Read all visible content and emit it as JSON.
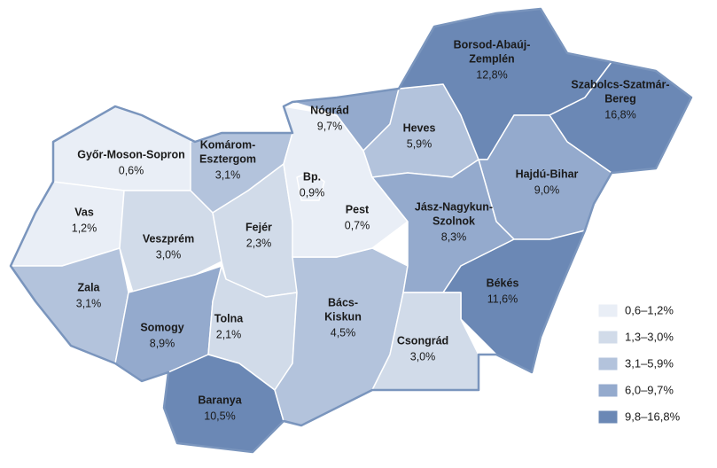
{
  "regions": [
    {
      "name": [
        "Győr-Moson-Sopron"
      ],
      "value": 0.6,
      "value_label": "0,6%"
    },
    {
      "name": [
        "Vas"
      ],
      "value": 1.2,
      "value_label": "1,2%"
    },
    {
      "name": [
        "Zala"
      ],
      "value": 3.1,
      "value_label": "3,1%"
    },
    {
      "name": [
        "Veszprém"
      ],
      "value": 3.0,
      "value_label": "3,0%"
    },
    {
      "name": [
        "Komárom-",
        "Esztergom"
      ],
      "value": 3.1,
      "value_label": "3,1%"
    },
    {
      "name": [
        "Fejér"
      ],
      "value": 2.3,
      "value_label": "2,3%"
    },
    {
      "name": [
        "Somogy"
      ],
      "value": 8.9,
      "value_label": "8,9%"
    },
    {
      "name": [
        "Tolna"
      ],
      "value": 2.1,
      "value_label": "2,1%"
    },
    {
      "name": [
        "Baranya"
      ],
      "value": 10.5,
      "value_label": "10,5%"
    },
    {
      "name": [
        "Bács-",
        "Kiskun"
      ],
      "value": 4.5,
      "value_label": "4,5%"
    },
    {
      "name": [
        "Pest"
      ],
      "value": 0.7,
      "value_label": "0,7%"
    },
    {
      "name": [
        "Bp."
      ],
      "value": 0.9,
      "value_label": "0,9%"
    },
    {
      "name": [
        "Nógrád"
      ],
      "value": 9.7,
      "value_label": "9,7%"
    },
    {
      "name": [
        "Heves"
      ],
      "value": 5.9,
      "value_label": "5,9%"
    },
    {
      "name": [
        "Borsod-Abaúj-",
        "Zemplén"
      ],
      "value": 12.8,
      "value_label": "12,8%"
    },
    {
      "name": [
        "Szabolcs-Szatmár-",
        "Bereg"
      ],
      "value": 16.8,
      "value_label": "16,8%"
    },
    {
      "name": [
        "Hajdú-Bihar"
      ],
      "value": 9.0,
      "value_label": "9,0%"
    },
    {
      "name": [
        "Jász-Nagykun-",
        "Szolnok"
      ],
      "value": 8.3,
      "value_label": "8,3%"
    },
    {
      "name": [
        "Békés"
      ],
      "value": 11.6,
      "value_label": "11,6%"
    },
    {
      "name": [
        "Csongrád"
      ],
      "value": 3.0,
      "value_label": "3,0%"
    }
  ],
  "legend": [
    {
      "label": "0,6–1,2%",
      "range": [
        0.6,
        1.2
      ],
      "color": "#e9eef6"
    },
    {
      "label": "1,3–3,0%",
      "range": [
        1.3,
        3.0
      ],
      "color": "#d1dbe9"
    },
    {
      "label": "3,1–5,9%",
      "range": [
        3.1,
        5.9
      ],
      "color": "#b3c3dc"
    },
    {
      "label": "6,0–9,7%",
      "range": [
        6.0,
        9.7
      ],
      "color": "#94aacd"
    },
    {
      "label": "9,8–16,8%",
      "range": [
        9.8,
        16.8
      ],
      "color": "#6b88b5"
    }
  ]
}
